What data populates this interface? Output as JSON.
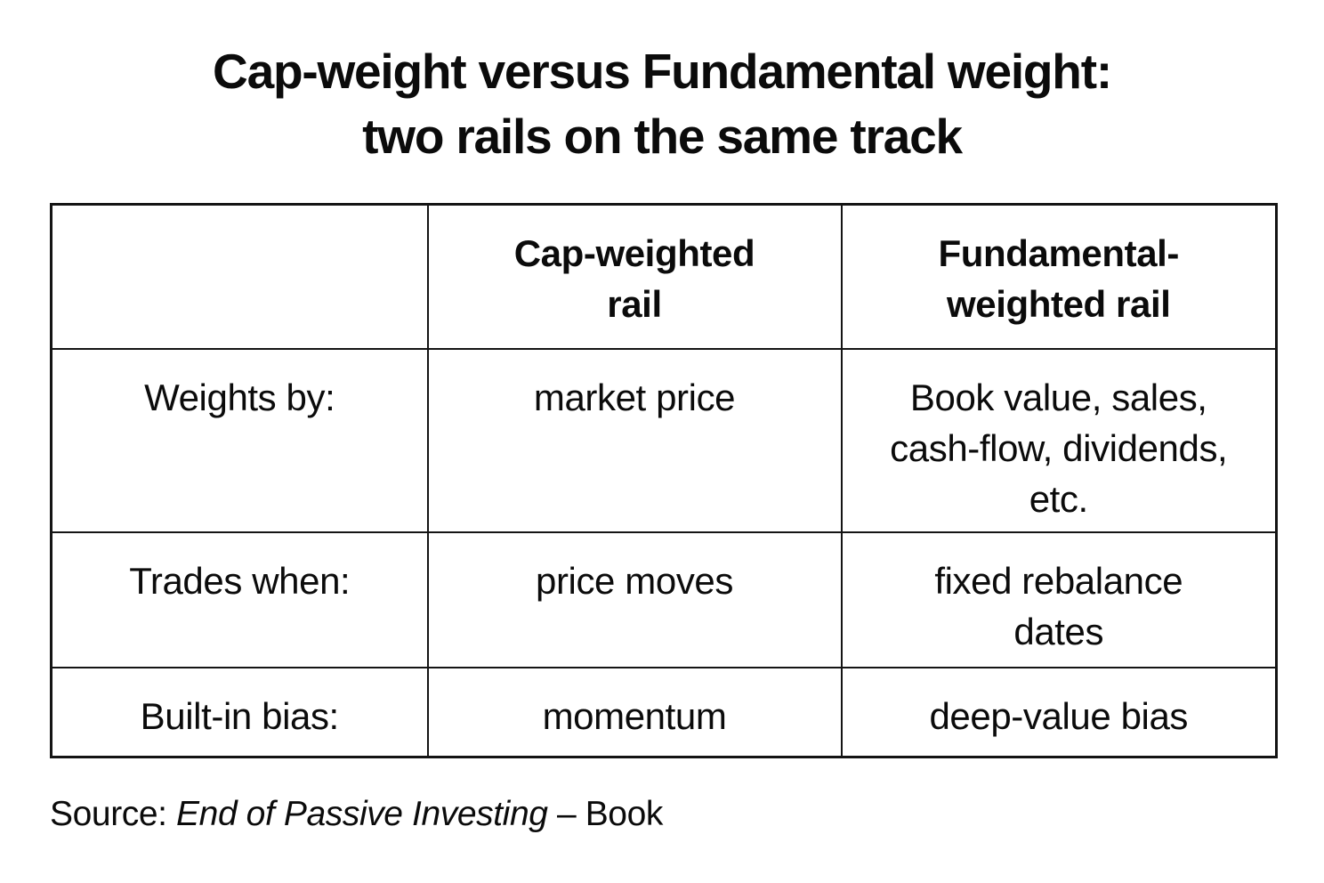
{
  "title": "Cap-weight versus Fundamental weight:\ntwo rails on the same track",
  "table": {
    "columns": [
      "",
      "Cap-weighted\nrail",
      "Fundamental-\nweighted rail"
    ],
    "rows": [
      {
        "label": "Weights by:",
        "cap": "market price",
        "fundamental": "Book value, sales,\ncash-flow, dividends,\netc."
      },
      {
        "label": "Trades when:",
        "cap": "price moves",
        "fundamental": "fixed rebalance\ndates"
      },
      {
        "label": "Built-in bias:",
        "cap": "momentum",
        "fundamental": "deep-value bias"
      }
    ]
  },
  "source": {
    "prefix": "Source: ",
    "work": "End of Passive Investing",
    "suffix": " – Book"
  },
  "colors": {
    "background": "#ffffff",
    "text": "#0b0b0b",
    "border": "#141414"
  }
}
